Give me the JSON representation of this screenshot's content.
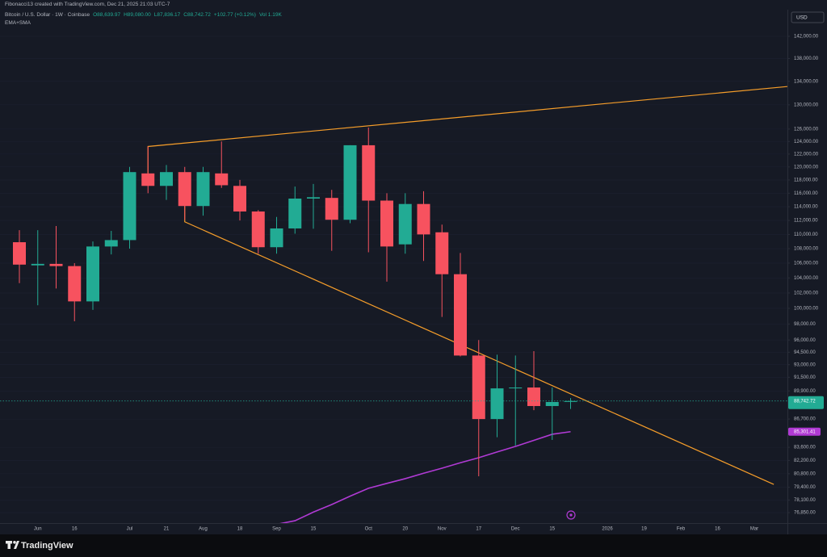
{
  "attribution": "Fibonacci13 created with TradingView.com, Dec 21, 2025 21:03 UTC-7",
  "brand": "TradingView",
  "chart_data": {
    "type": "candlestick",
    "symbol": "Bitcoin / U.S. Dollar · 1W · Coinbase",
    "ohlc_legend": [
      "O88,639.97",
      "H89,080.00",
      "L87,836.17",
      "C88,742.72",
      "+102.77 (+0.12%)"
    ],
    "volume": "Vol 1.19K",
    "indicators": "EMA+SMA",
    "currency": "USD",
    "log_scale": true,
    "grid": true,
    "up_color": "#22ab94",
    "down_color": "#f7525f",
    "categories": [
      null,
      "Jun",
      null,
      "16",
      null,
      null,
      "Jul",
      null,
      "21",
      null,
      "Aug",
      null,
      "18",
      null,
      "Sep",
      null,
      "15",
      null,
      null,
      "Oct",
      null,
      "20",
      null,
      "Nov",
      null,
      "17",
      null,
      "Dec",
      null,
      "15",
      null,
      null,
      "2026",
      null,
      "19",
      null,
      "Feb",
      null,
      "16",
      null,
      "Mar",
      null
    ],
    "open": [
      108900,
      105700,
      105900,
      105600,
      100900,
      108300,
      109200,
      119000,
      117100,
      119200,
      114100,
      119000,
      117100,
      113300,
      108200,
      110850,
      115200,
      115300,
      112100,
      123400,
      114900,
      108600,
      114400,
      110300,
      104500,
      94100,
      86700,
      90200,
      90300,
      88170,
      88639.97,
      null,
      null,
      null,
      null,
      null,
      null,
      null,
      null,
      null,
      null,
      null
    ],
    "high": [
      110600,
      110600,
      111200,
      106000,
      109000,
      110500,
      120000,
      123200,
      120300,
      120000,
      120000,
      124000,
      118000,
      113500,
      112500,
      117000,
      117400,
      116500,
      123400,
      126250,
      116000,
      116000,
      116300,
      111400,
      107400,
      96000,
      94200,
      94100,
      94630,
      90300,
      89080,
      null,
      null,
      null,
      null,
      null,
      null,
      null,
      null,
      null,
      null,
      null
    ],
    "low": [
      103300,
      100400,
      102600,
      98350,
      99800,
      107200,
      108000,
      116000,
      115000,
      112100,
      112700,
      116800,
      112000,
      107300,
      107300,
      110100,
      110800,
      107700,
      111600,
      107500,
      103500,
      107300,
      106300,
      98900,
      94000,
      80540,
      84700,
      83800,
      87700,
      84400,
      87836.17,
      null,
      null,
      null,
      null,
      null,
      null,
      null,
      null,
      null,
      null,
      null
    ],
    "close": [
      105800,
      105900,
      105600,
      100900,
      108300,
      109200,
      119200,
      117100,
      119200,
      114100,
      119200,
      117200,
      113300,
      108200,
      110850,
      115200,
      115400,
      112100,
      123400,
      114900,
      108300,
      114400,
      110000,
      104500,
      94100,
      86700,
      90200,
      90300,
      88170,
      88630,
      88742.72,
      null,
      null,
      null,
      null,
      null,
      null,
      null,
      null,
      null,
      null,
      null
    ],
    "sma": {
      "color": "#b03ad4",
      "values": [
        null,
        null,
        null,
        null,
        null,
        null,
        null,
        null,
        null,
        null,
        null,
        null,
        null,
        null,
        75700,
        76050,
        76900,
        77660,
        78500,
        79300,
        79800,
        80290,
        80850,
        81380,
        81950,
        82490,
        83100,
        83700,
        84350,
        85020,
        85301.41,
        null,
        null,
        null,
        null,
        null,
        null,
        null,
        null,
        null,
        null,
        null
      ]
    },
    "trend_lines": [
      {
        "color": "#f59d2a",
        "x": [
          7,
          7,
          41.8
        ],
        "y": [
          119000,
          123200,
          133100
        ]
      },
      {
        "color": "#f59d2a",
        "x": [
          9,
          9,
          41.06
        ],
        "y": [
          114100,
          111800,
          79700
        ]
      }
    ],
    "price_label": {
      "value": 88742.72,
      "label": "88,742.72"
    },
    "sma_label": {
      "value": 85301.41,
      "label": "85,301.41"
    },
    "ylim": [
      75820,
      146960
    ],
    "yticks": [
      {
        "value": 142000,
        "label": "142,000.00"
      },
      {
        "value": 138000,
        "label": "138,000.00"
      },
      {
        "value": 134000,
        "label": "134,000.00"
      },
      {
        "value": 130000,
        "label": "130,000.00"
      },
      {
        "value": 126000,
        "label": "126,000.00"
      },
      {
        "value": 124000,
        "label": "124,000.00"
      },
      {
        "value": 122000,
        "label": "122,000.00"
      },
      {
        "value": 120000,
        "label": "120,000.00"
      },
      {
        "value": 118000,
        "label": "118,000.00"
      },
      {
        "value": 116000,
        "label": "116,000.00"
      },
      {
        "value": 114000,
        "label": "114,000.00"
      },
      {
        "value": 112000,
        "label": "112,000.00"
      },
      {
        "value": 110000,
        "label": "110,000.00"
      },
      {
        "value": 108000,
        "label": "108,000.00"
      },
      {
        "value": 106000,
        "label": "106,000.00"
      },
      {
        "value": 104000,
        "label": "104,000.00"
      },
      {
        "value": 102000,
        "label": "102,000.00"
      },
      {
        "value": 100000,
        "label": "100,000.00"
      },
      {
        "value": 98000,
        "label": "98,000.00"
      },
      {
        "value": 96000,
        "label": "96,000.00"
      },
      {
        "value": 94500,
        "label": "94,500.00"
      },
      {
        "value": 93000,
        "label": "93,000.00"
      },
      {
        "value": 91500,
        "label": "91,500.00"
      },
      {
        "value": 89900,
        "label": "89,900.00"
      },
      {
        "value": 86700,
        "label": "86,700.00"
      },
      {
        "value": 83600,
        "label": "83,600.00"
      },
      {
        "value": 82200,
        "label": "82,200.00"
      },
      {
        "value": 80800,
        "label": "80,800.00"
      },
      {
        "value": 79400,
        "label": "79,400.00"
      },
      {
        "value": 78100,
        "label": "78,100.00"
      },
      {
        "value": 76850,
        "label": "76,850.00"
      }
    ]
  }
}
